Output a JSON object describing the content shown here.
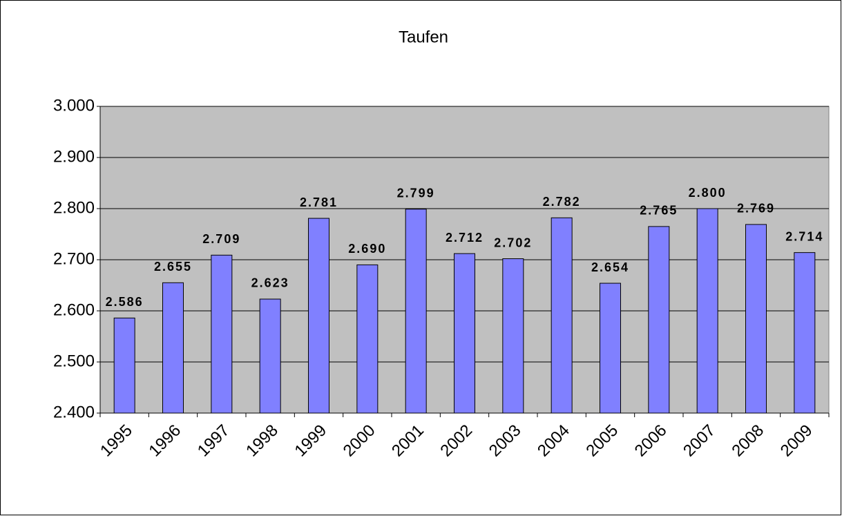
{
  "chart_data": {
    "type": "bar",
    "title": "Taufen",
    "categories": [
      "1995",
      "1996",
      "1997",
      "1998",
      "1999",
      "2000",
      "2001",
      "2002",
      "2003",
      "2004",
      "2005",
      "2006",
      "2007",
      "2008",
      "2009"
    ],
    "values": [
      2586,
      2655,
      2709,
      2623,
      2781,
      2690,
      2799,
      2712,
      2702,
      2782,
      2654,
      2765,
      2800,
      2769,
      2714
    ],
    "value_labels": [
      "2.586",
      "2.655",
      "2.709",
      "2.623",
      "2.781",
      "2.690",
      "2.799",
      "2.712",
      "2.702",
      "2.782",
      "2.654",
      "2.765",
      "2.800",
      "2.769",
      "2.714"
    ],
    "color": "#8080ff",
    "ylim": [
      2400,
      3000
    ],
    "yticks": [
      {
        "value": 2400,
        "label": "2.400"
      },
      {
        "value": 2500,
        "label": "2.500"
      },
      {
        "value": 2600,
        "label": "2.600"
      },
      {
        "value": 2700,
        "label": "2.700"
      },
      {
        "value": 2800,
        "label": "2.800"
      },
      {
        "value": 2900,
        "label": "2.900"
      },
      {
        "value": 3000,
        "label": "3.000"
      }
    ],
    "grid": true
  }
}
